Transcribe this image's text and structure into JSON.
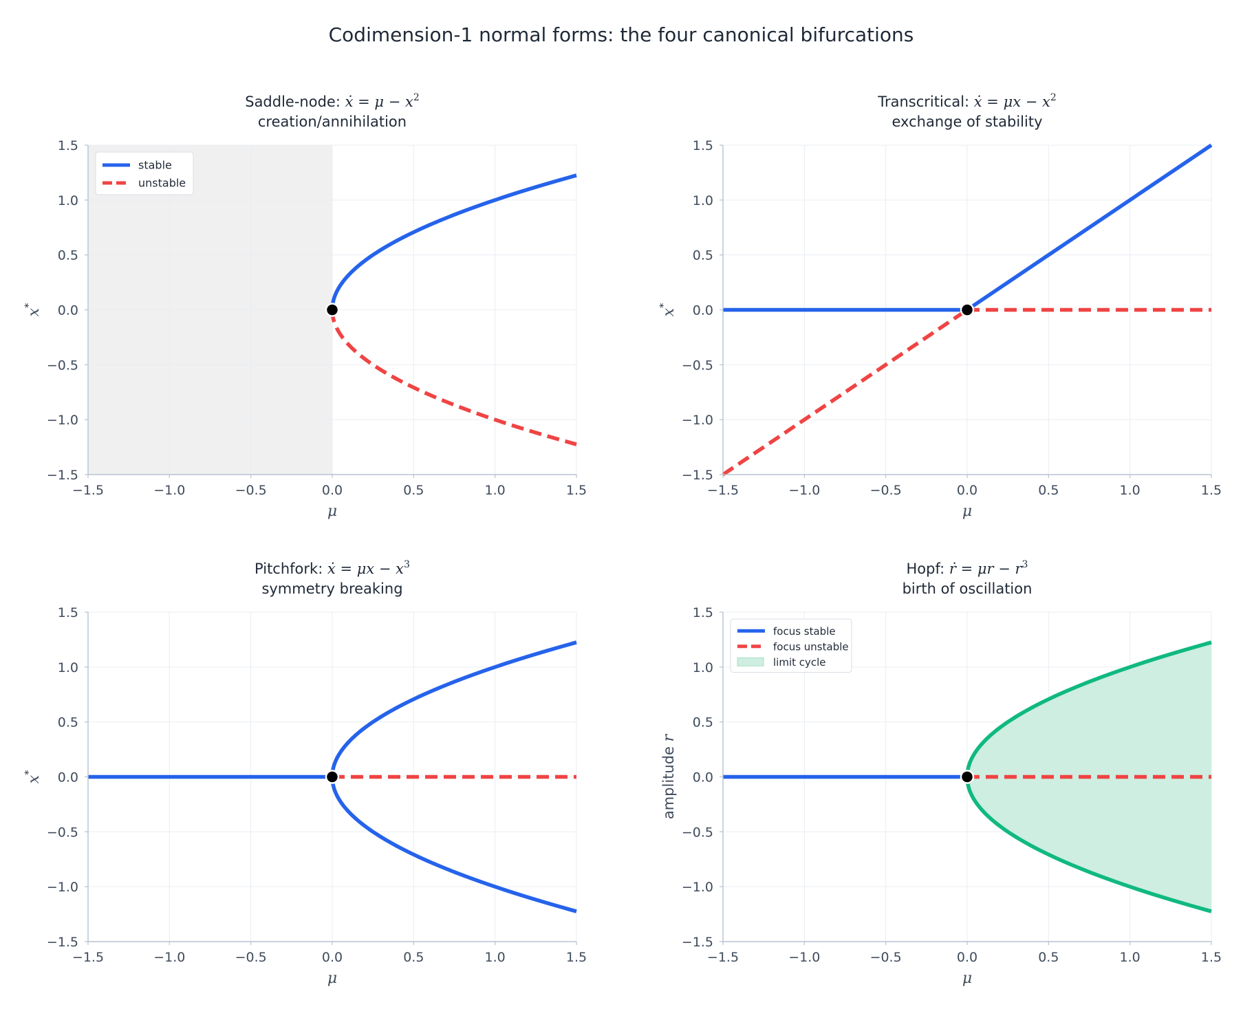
{
  "figure_title": "Codimension-1 normal forms: the four canonical bifurcations",
  "colors": {
    "stable": "#2563eb",
    "unstable": "#ef4444",
    "limit_cycle": "#10b981",
    "limit_fill": "#cdeee0",
    "shade": "#f0f0f0",
    "point": "#000000"
  },
  "chart_data": [
    {
      "type": "line",
      "title_name": "Saddle-node:",
      "title_eq": {
        "lhs": "ẋ",
        "rhs": "μ − x",
        "sup": "2"
      },
      "subtitle": "creation/annihilation",
      "xlabel": "μ",
      "ylabel_var": "x",
      "ylabel_sup": "*",
      "xlim": [
        -1.5,
        1.5
      ],
      "ylim": [
        -1.5,
        1.5
      ],
      "xticks": [
        "−1.5",
        "−1.0",
        "−0.5",
        "0.0",
        "0.5",
        "1.0",
        "1.5"
      ],
      "yticks": [
        "−1.5",
        "−1.0",
        "−0.5",
        "0.0",
        "0.5",
        "1.0",
        "1.5"
      ],
      "grid": true,
      "legend_position": "top-left",
      "legend": [
        {
          "label": "stable",
          "kind": "solid"
        },
        {
          "label": "unstable",
          "kind": "dashed"
        }
      ],
      "shaded_region": {
        "x_from": -1.5,
        "x_to": 0
      },
      "series": [
        {
          "kind": "stable",
          "formula": "x = +sqrt(mu), mu >= 0",
          "points": [
            [
              0,
              0
            ],
            [
              0.25,
              0.5
            ],
            [
              0.5,
              0.707
            ],
            [
              1.0,
              1.0
            ],
            [
              1.5,
              1.225
            ]
          ]
        },
        {
          "kind": "unstable",
          "formula": "x = -sqrt(mu), mu >= 0",
          "points": [
            [
              0,
              0
            ],
            [
              0.25,
              -0.5
            ],
            [
              0.5,
              -0.707
            ],
            [
              1.0,
              -1.0
            ],
            [
              1.5,
              -1.225
            ]
          ]
        }
      ],
      "bifurcation_point": [
        0,
        0
      ]
    },
    {
      "type": "line",
      "title_name": "Transcritical:",
      "title_eq": {
        "lhs": "ẋ",
        "rhs": "μx − x",
        "sup": "2"
      },
      "subtitle": "exchange of stability",
      "xlabel": "μ",
      "ylabel_var": "x",
      "ylabel_sup": "*",
      "xlim": [
        -1.5,
        1.5
      ],
      "ylim": [
        -1.5,
        1.5
      ],
      "xticks": [
        "−1.5",
        "−1.0",
        "−0.5",
        "0.0",
        "0.5",
        "1.0",
        "1.5"
      ],
      "yticks": [
        "−1.5",
        "−1.0",
        "−0.5",
        "0.0",
        "0.5",
        "1.0",
        "1.5"
      ],
      "grid": true,
      "series": [
        {
          "kind": "stable",
          "formula": "x = 0, mu <= 0",
          "points": [
            [
              -1.5,
              0
            ],
            [
              0,
              0
            ]
          ]
        },
        {
          "kind": "stable",
          "formula": "x = mu, mu >= 0",
          "points": [
            [
              0,
              0
            ],
            [
              1.5,
              1.5
            ]
          ]
        },
        {
          "kind": "unstable",
          "formula": "x = mu, mu <= 0",
          "points": [
            [
              -1.5,
              -1.5
            ],
            [
              0,
              0
            ]
          ]
        },
        {
          "kind": "unstable",
          "formula": "x = 0, mu >= 0",
          "points": [
            [
              0,
              0
            ],
            [
              1.5,
              0
            ]
          ]
        }
      ],
      "bifurcation_point": [
        0,
        0
      ]
    },
    {
      "type": "line",
      "title_name": "Pitchfork:",
      "title_eq": {
        "lhs": "ẋ",
        "rhs": "μx − x",
        "sup": "3"
      },
      "subtitle": "symmetry breaking",
      "xlabel": "μ",
      "ylabel_var": "x",
      "ylabel_sup": "*",
      "xlim": [
        -1.5,
        1.5
      ],
      "ylim": [
        -1.5,
        1.5
      ],
      "xticks": [
        "−1.5",
        "−1.0",
        "−0.5",
        "0.0",
        "0.5",
        "1.0",
        "1.5"
      ],
      "yticks": [
        "−1.5",
        "−1.0",
        "−0.5",
        "0.0",
        "0.5",
        "1.0",
        "1.5"
      ],
      "grid": true,
      "series": [
        {
          "kind": "stable",
          "formula": "x = 0, mu <= 0",
          "points": [
            [
              -1.5,
              0
            ],
            [
              0,
              0
            ]
          ]
        },
        {
          "kind": "stable",
          "formula": "x = +sqrt(mu), mu >= 0",
          "points": [
            [
              0,
              0
            ],
            [
              0.5,
              0.707
            ],
            [
              1.0,
              1.0
            ],
            [
              1.5,
              1.225
            ]
          ]
        },
        {
          "kind": "stable",
          "formula": "x = -sqrt(mu), mu >= 0",
          "points": [
            [
              0,
              0
            ],
            [
              0.5,
              -0.707
            ],
            [
              1.0,
              -1.0
            ],
            [
              1.5,
              -1.225
            ]
          ]
        },
        {
          "kind": "unstable",
          "formula": "x = 0, mu >= 0",
          "points": [
            [
              0,
              0
            ],
            [
              1.5,
              0
            ]
          ]
        }
      ],
      "bifurcation_point": [
        0,
        0
      ]
    },
    {
      "type": "line",
      "title_name": "Hopf:",
      "title_eq": {
        "lhs": "ṙ",
        "rhs": "μr − r",
        "sup": "3"
      },
      "subtitle": "birth of oscillation",
      "xlabel": "μ",
      "ylabel_prefix": "amplitude",
      "ylabel_var": "r",
      "xlim": [
        -1.5,
        1.5
      ],
      "ylim": [
        -1.5,
        1.5
      ],
      "xticks": [
        "−1.5",
        "−1.0",
        "−0.5",
        "0.0",
        "0.5",
        "1.0",
        "1.5"
      ],
      "yticks": [
        "−1.5",
        "−1.0",
        "−0.5",
        "0.0",
        "0.5",
        "1.0",
        "1.5"
      ],
      "grid": true,
      "legend_position": "top-left",
      "legend": [
        {
          "label": "focus stable",
          "kind": "solid"
        },
        {
          "label": "focus unstable",
          "kind": "dashed"
        },
        {
          "label": "limit cycle",
          "kind": "patch"
        }
      ],
      "series": [
        {
          "kind": "stable",
          "formula": "r = 0, mu <= 0",
          "points": [
            [
              -1.5,
              0
            ],
            [
              0,
              0
            ]
          ]
        },
        {
          "kind": "unstable",
          "formula": "r = 0, mu >= 0",
          "points": [
            [
              0,
              0
            ],
            [
              1.5,
              0
            ]
          ]
        },
        {
          "kind": "limit_cycle",
          "formula": "r = +sqrt(mu), mu >= 0",
          "points": [
            [
              0,
              0
            ],
            [
              0.5,
              0.707
            ],
            [
              1.0,
              1.0
            ],
            [
              1.5,
              1.225
            ]
          ]
        },
        {
          "kind": "limit_cycle",
          "formula": "r = -sqrt(mu), mu >= 0",
          "points": [
            [
              0,
              0
            ],
            [
              0.5,
              -0.707
            ],
            [
              1.0,
              -1.0
            ],
            [
              1.5,
              -1.225
            ]
          ]
        }
      ],
      "limit_cycle_fill": {
        "x_from": 0,
        "x_to": 1.5,
        "between": "±sqrt(mu)"
      },
      "bifurcation_point": [
        0,
        0
      ]
    }
  ]
}
